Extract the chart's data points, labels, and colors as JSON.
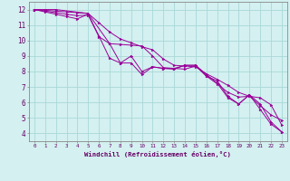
{
  "xlabel": "Windchill (Refroidissement éolien,°C)",
  "background_color": "#d4f0f0",
  "grid_color": "#aad8d8",
  "line_color": "#990099",
  "xlim": [
    -0.5,
    23.5
  ],
  "ylim": [
    3.5,
    12.5
  ],
  "xticks": [
    0,
    1,
    2,
    3,
    4,
    5,
    6,
    7,
    8,
    9,
    10,
    11,
    12,
    13,
    14,
    15,
    16,
    17,
    18,
    19,
    20,
    21,
    22,
    23
  ],
  "yticks": [
    4,
    5,
    6,
    7,
    8,
    9,
    10,
    11,
    12
  ],
  "series": [
    {
      "x": [
        0,
        1,
        2,
        3,
        4,
        5,
        6,
        7,
        8,
        9,
        10,
        11,
        12,
        13,
        14,
        15,
        16,
        17,
        18,
        19,
        20,
        21,
        22,
        23
      ],
      "y": [
        12,
        11.85,
        11.7,
        11.55,
        11.4,
        11.7,
        10.3,
        8.85,
        8.55,
        8.55,
        7.8,
        8.3,
        8.2,
        8.15,
        8.4,
        8.4,
        7.8,
        7.25,
        6.3,
        5.9,
        6.5,
        5.55,
        4.6,
        4.1
      ]
    },
    {
      "x": [
        0,
        1,
        2,
        3,
        4,
        5,
        6,
        7,
        8,
        9,
        10,
        11,
        12,
        13,
        14,
        15,
        16,
        17,
        18,
        19,
        20,
        21,
        22,
        23
      ],
      "y": [
        12,
        11.9,
        11.8,
        11.7,
        11.6,
        11.65,
        10.25,
        9.8,
        9.75,
        9.7,
        9.65,
        9.0,
        8.25,
        8.2,
        8.15,
        8.35,
        7.7,
        7.2,
        6.65,
        6.35,
        6.4,
        6.3,
        5.85,
        4.55
      ]
    },
    {
      "x": [
        0,
        1,
        2,
        3,
        4,
        5,
        6,
        7,
        8,
        9,
        10,
        11,
        12,
        13,
        14,
        15,
        16,
        17,
        18,
        19,
        20,
        21,
        22,
        23
      ],
      "y": [
        12,
        11.95,
        11.9,
        11.85,
        11.8,
        11.75,
        11.15,
        10.55,
        10.1,
        9.85,
        9.6,
        9.4,
        8.8,
        8.4,
        8.35,
        8.3,
        7.85,
        7.5,
        7.1,
        6.65,
        6.4,
        5.8,
        5.2,
        4.85
      ]
    },
    {
      "x": [
        0,
        2,
        5,
        7,
        8,
        9,
        10,
        11,
        12,
        13,
        14,
        15,
        16,
        17,
        18,
        19,
        20,
        21,
        22,
        23
      ],
      "y": [
        12,
        12,
        11.75,
        9.8,
        8.55,
        9.0,
        8.0,
        8.3,
        8.2,
        8.2,
        8.4,
        8.4,
        7.7,
        7.4,
        6.4,
        5.9,
        6.5,
        5.9,
        4.75,
        4.1
      ]
    }
  ]
}
